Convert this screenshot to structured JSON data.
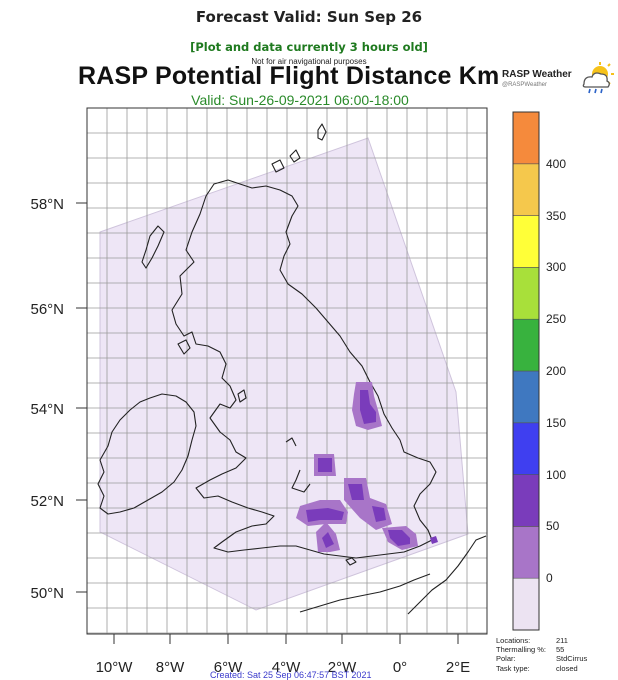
{
  "header": {
    "forecast_valid": "Forecast Valid: Sun Sep 26",
    "data_age": "[Plot and data currently 3 hours old]",
    "disclaimer": "Not for air navigational purposes",
    "title": "RASP Potential Flight Distance Km",
    "valid_period": "Valid: Sun-26-09-2021 06:00-18:00"
  },
  "brand": {
    "name": "RASP Weather",
    "handle": "@RASPWeather",
    "icon": "sun-cloud-rain-icon"
  },
  "map": {
    "region": "Great Britain",
    "lat_labels": [
      "58°N",
      "56°N",
      "54°N",
      "52°N",
      "50°N"
    ],
    "lon_labels": [
      "10°W",
      "8°W",
      "6°W",
      "4°W",
      "2°W",
      "0°",
      "2°E"
    ],
    "domain_fill_color": "#eee6f6",
    "coastline_color": "#222222"
  },
  "legend": {
    "levels": [
      0,
      50,
      100,
      150,
      200,
      250,
      300,
      350,
      400
    ],
    "labels": [
      "0",
      "50",
      "100",
      "150",
      "200",
      "250",
      "300",
      "350",
      "400"
    ],
    "colors": [
      "#ece3f2",
      "#a875c8",
      "#7a3cbb",
      "#3f3ff0",
      "#3f78c0",
      "#38b23e",
      "#a8e03a",
      "#ffff38",
      "#f5c84c",
      "#f58a3c"
    ]
  },
  "stats": {
    "locations_label": "Locations:",
    "locations": "211",
    "thermalling_label": "Thermalling %:",
    "thermalling": "55",
    "polar_label": "Polar:",
    "polar": "StdCirrus",
    "task_label": "Task type:",
    "task": "closed"
  },
  "created": "Created: Sat 25 Sep 06:47:57 BST 2021"
}
